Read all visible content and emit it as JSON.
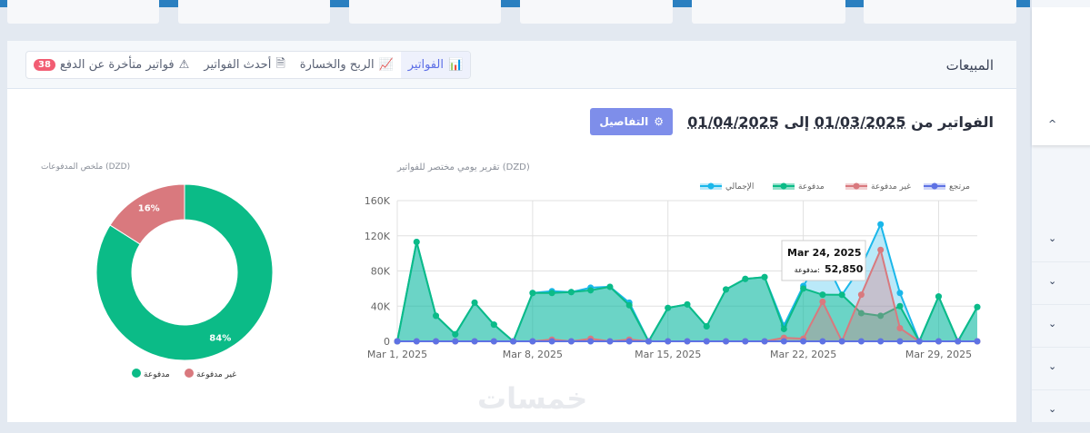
{
  "header": {
    "title": "المبيعات"
  },
  "tabs": [
    {
      "label": "الفواتير",
      "icon": "bar-chart-icon",
      "active": true
    },
    {
      "label": "الربح والخسارة",
      "icon": "line-chart-icon"
    },
    {
      "label": "أحدث الفواتير",
      "icon": "document-icon"
    },
    {
      "label": "فواتير متأخرة عن الدفع",
      "icon": "warning-icon",
      "badge": "38"
    }
  ],
  "range": {
    "prefix": "الفواتير من",
    "from": "01/03/2025",
    "sep": "إلى",
    "to": "01/04/2025"
  },
  "details_button": "التفاصيل",
  "watermark": "خمسات",
  "colors": {
    "paid": "#0bbb87",
    "unpaid": "#d9797e",
    "total": "#1ab7ea",
    "refund": "#5e72e4",
    "accent": "#7e8eea"
  },
  "chart_data": [
    {
      "type": "pie",
      "title": "ملخص المدفوعات (DZD)",
      "labels": [
        "مدفوعة",
        "غير مدفوعة"
      ],
      "values": [
        84,
        16
      ],
      "data_labels": [
        "84%",
        "16%"
      ],
      "legend": "bottom"
    },
    {
      "type": "area",
      "title": "تقرير يومي مختصر للفواتير (DZD)",
      "x": [
        "Mar 1",
        "Mar 2",
        "Mar 3",
        "Mar 4",
        "Mar 5",
        "Mar 6",
        "Mar 7",
        "Mar 8",
        "Mar 9",
        "Mar 10",
        "Mar 11",
        "Mar 12",
        "Mar 13",
        "Mar 14",
        "Mar 15",
        "Mar 16",
        "Mar 17",
        "Mar 18",
        "Mar 19",
        "Mar 20",
        "Mar 21",
        "Mar 22",
        "Mar 23",
        "Mar 24",
        "Mar 25",
        "Mar 26",
        "Mar 27",
        "Mar 28",
        "Mar 29",
        "Mar 30",
        "Mar 31"
      ],
      "x_ticks": [
        "Mar 1, 2025",
        "Mar 8, 2025",
        "Mar 15, 2025",
        "Mar 22, 2025",
        "Mar 29, 2025"
      ],
      "y_ticks": [
        "0",
        "40K",
        "80K",
        "120K",
        "160K"
      ],
      "ylim": [
        0,
        160000
      ],
      "grid": true,
      "legend": "top-right",
      "series": [
        {
          "name": "الإجمالي",
          "values": [
            0,
            113000,
            29000,
            8000,
            44000,
            19000,
            0,
            55000,
            57000,
            56000,
            61000,
            62000,
            44000,
            0,
            38000,
            42000,
            17000,
            59000,
            71000,
            73000,
            18000,
            63000,
            98000,
            52850,
            85000,
            133000,
            55000,
            0,
            51000,
            0,
            39000
          ]
        },
        {
          "name": "مدفوعة",
          "values": [
            0,
            113000,
            29000,
            8000,
            44000,
            19000,
            0,
            55000,
            55000,
            56000,
            58000,
            62000,
            41000,
            0,
            38000,
            42000,
            17000,
            59000,
            71000,
            73000,
            14000,
            60000,
            53000,
            52850,
            32000,
            29000,
            40000,
            0,
            51000,
            0,
            39000
          ]
        },
        {
          "name": "غير مدفوعة",
          "values": [
            0,
            0,
            0,
            0,
            0,
            0,
            0,
            0,
            2000,
            0,
            3000,
            0,
            2000,
            0,
            0,
            0,
            0,
            0,
            0,
            0,
            4000,
            3000,
            45000,
            0,
            53000,
            104000,
            15000,
            0,
            0,
            0,
            0
          ]
        },
        {
          "name": "مرتجع",
          "values": [
            0,
            0,
            0,
            0,
            0,
            0,
            0,
            0,
            0,
            0,
            0,
            0,
            0,
            0,
            0,
            0,
            0,
            0,
            0,
            0,
            0,
            0,
            0,
            0,
            0,
            0,
            0,
            0,
            0,
            0,
            0
          ]
        }
      ],
      "tooltip": {
        "date": "Mar 24, 2025",
        "label": "مدفوعة:",
        "value": "52,850"
      }
    }
  ]
}
